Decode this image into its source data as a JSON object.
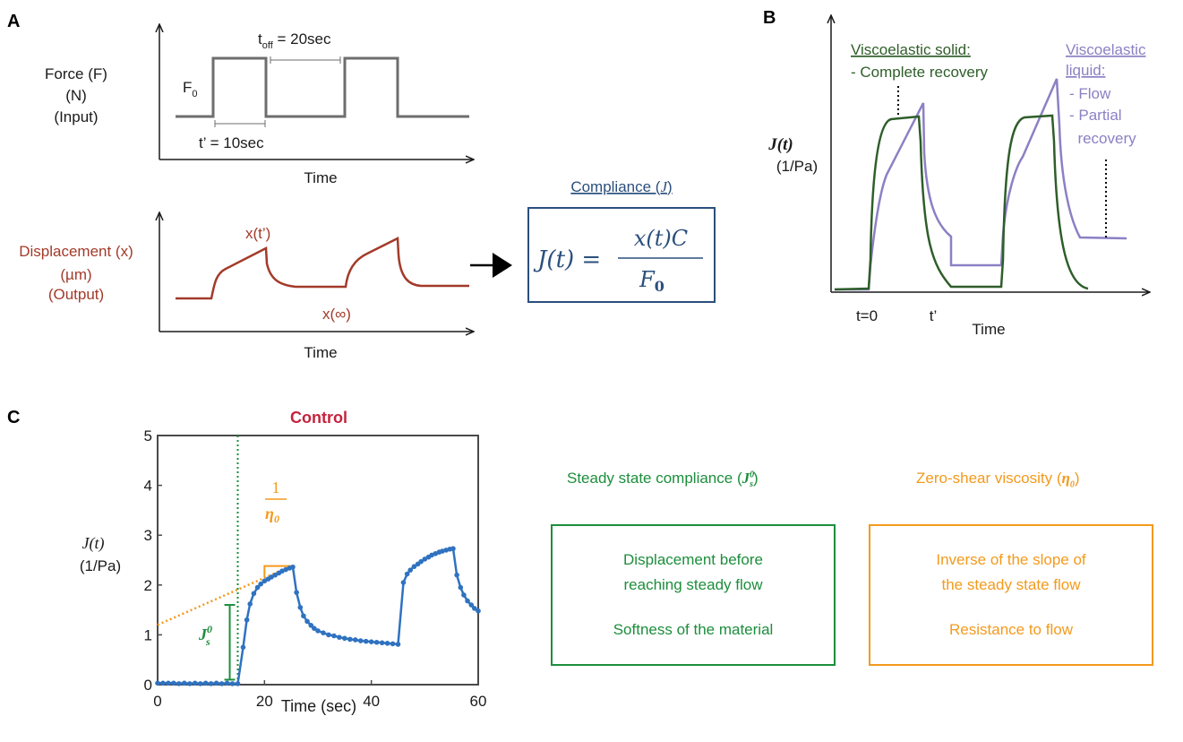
{
  "colors": {
    "gray": "#6e6e6e",
    "red": "#a33a2a",
    "navy": "#2b4f7c",
    "dark_green": "#2f5e2a",
    "purple": "#8c80c4",
    "plot_blue": "#2f72c0",
    "green": "#1c8e3c",
    "orange": "#f39a1c",
    "control_red": "#c4233c"
  },
  "panel_a": {
    "letter": "A",
    "force": {
      "ylabel_lines": [
        "Force (F)",
        "(N)",
        "(Input)"
      ],
      "amplitude_label": "F",
      "amplitude_sub": "0",
      "toff_label": "t",
      "toff_sub": "off",
      "toff_value": " = 20sec",
      "tprime_label": "t’ = 10sec",
      "xlabel": "Time"
    },
    "displacement": {
      "ylabel_lines": [
        "Displacement (x)",
        "(µm)",
        "(Output)"
      ],
      "peak_label": "x(t’)",
      "inf_label": "x(∞)",
      "xlabel": "Time"
    },
    "compliance": {
      "title": "Compliance (",
      "title_symbol": "J",
      "title_close": ")",
      "lhs": "J(t) =",
      "numerator": "x(t)C",
      "denominator": "F",
      "denominator_sub": "0"
    }
  },
  "panel_b": {
    "letter": "B",
    "ylabel": "J(t)",
    "yunit": "(1/Pa)",
    "xlabel": "Time",
    "t0_label": "t=0",
    "tprime_label": "t’",
    "solid_title": "Viscoelastic solid:",
    "solid_notes": [
      "- Complete recovery"
    ],
    "liquid_title_lines": [
      "Viscoelastic",
      "liquid:"
    ],
    "liquid_notes": [
      "- Flow",
      "- Partial",
      "  recovery"
    ]
  },
  "panel_c": {
    "letter": "C",
    "chart_data": {
      "type": "scatter",
      "title": "Control",
      "xlabel": "Time (sec)",
      "ylabel": "J(t)",
      "yunit": "(1/Pa)",
      "xlim": [
        0,
        60
      ],
      "ylim": [
        0,
        5
      ],
      "xticks": [
        0,
        20,
        40,
        60
      ],
      "yticks": [
        0,
        1,
        2,
        3,
        4,
        5
      ],
      "grid": false,
      "series": [
        {
          "points": [
            [
              0,
              0.03
            ],
            [
              1,
              0.03
            ],
            [
              2,
              0.03
            ],
            [
              3,
              0.03
            ],
            [
              4,
              0.02
            ],
            [
              5,
              0.03
            ],
            [
              6,
              0.02
            ],
            [
              7,
              0.03
            ],
            [
              8,
              0.02
            ],
            [
              9,
              0.03
            ],
            [
              10,
              0.02
            ],
            [
              11,
              0.03
            ],
            [
              12,
              0.02
            ],
            [
              13,
              0.03
            ],
            [
              14,
              0.02
            ],
            [
              15,
              0.02
            ],
            [
              16,
              0.75
            ],
            [
              16.7,
              1.3
            ],
            [
              17.3,
              1.62
            ],
            [
              18,
              1.83
            ],
            [
              18.7,
              1.95
            ],
            [
              19.3,
              2.02
            ],
            [
              20,
              2.08
            ],
            [
              20.7,
              2.12
            ],
            [
              21.3,
              2.16
            ],
            [
              22,
              2.2
            ],
            [
              22.7,
              2.24
            ],
            [
              23.3,
              2.28
            ],
            [
              24,
              2.31
            ],
            [
              24.7,
              2.34
            ],
            [
              25.3,
              2.36
            ],
            [
              26,
              1.85
            ],
            [
              26.7,
              1.55
            ],
            [
              27.3,
              1.38
            ],
            [
              28,
              1.27
            ],
            [
              28.7,
              1.19
            ],
            [
              29.3,
              1.13
            ],
            [
              30,
              1.08
            ],
            [
              31,
              1.04
            ],
            [
              32,
              1.0
            ],
            [
              33,
              0.98
            ],
            [
              34,
              0.95
            ],
            [
              35,
              0.93
            ],
            [
              36,
              0.91
            ],
            [
              37,
              0.9
            ],
            [
              38,
              0.88
            ],
            [
              39,
              0.87
            ],
            [
              40,
              0.86
            ],
            [
              41,
              0.85
            ],
            [
              42,
              0.84
            ],
            [
              43,
              0.83
            ],
            [
              44,
              0.82
            ],
            [
              45,
              0.81
            ],
            [
              46,
              2.05
            ],
            [
              46.7,
              2.22
            ],
            [
              47.3,
              2.3
            ],
            [
              48,
              2.37
            ],
            [
              48.7,
              2.42
            ],
            [
              49.3,
              2.47
            ],
            [
              50,
              2.52
            ],
            [
              50.7,
              2.56
            ],
            [
              51.3,
              2.6
            ],
            [
              52,
              2.63
            ],
            [
              52.7,
              2.66
            ],
            [
              53.3,
              2.68
            ],
            [
              54,
              2.7
            ],
            [
              54.7,
              2.72
            ],
            [
              55.3,
              2.73
            ],
            [
              56,
              2.2
            ],
            [
              56.7,
              1.95
            ],
            [
              57.3,
              1.8
            ],
            [
              58,
              1.68
            ],
            [
              58.7,
              1.6
            ],
            [
              59.3,
              1.53
            ],
            [
              60,
              1.48
            ]
          ]
        }
      ],
      "annotations": {
        "vline_x": 15,
        "slope_line": {
          "x0": 0,
          "y0": 1.2,
          "x1": 25,
          "y1": 2.38
        },
        "bracket": {
          "x": 13.5,
          "y0": 0.1,
          "y1": 1.6
        },
        "slope_num": "1",
        "slope_den": "η",
        "slope_den_sub": "0",
        "js_symbol": "J",
        "js_super": "0",
        "js_sub": "s"
      }
    },
    "steady": {
      "title": "Steady state compliance (",
      "title_symbol": "J",
      "title_close": ")",
      "lines": [
        "Displacement before",
        "reaching steady flow"
      ],
      "note": "Softness of the material"
    },
    "viscosity": {
      "title": "Zero-shear viscosity (",
      "title_symbol": "η",
      "title_close": ")",
      "lines": [
        "Inverse of the slope of",
        "the steady state flow"
      ],
      "note": "Resistance to flow"
    }
  }
}
